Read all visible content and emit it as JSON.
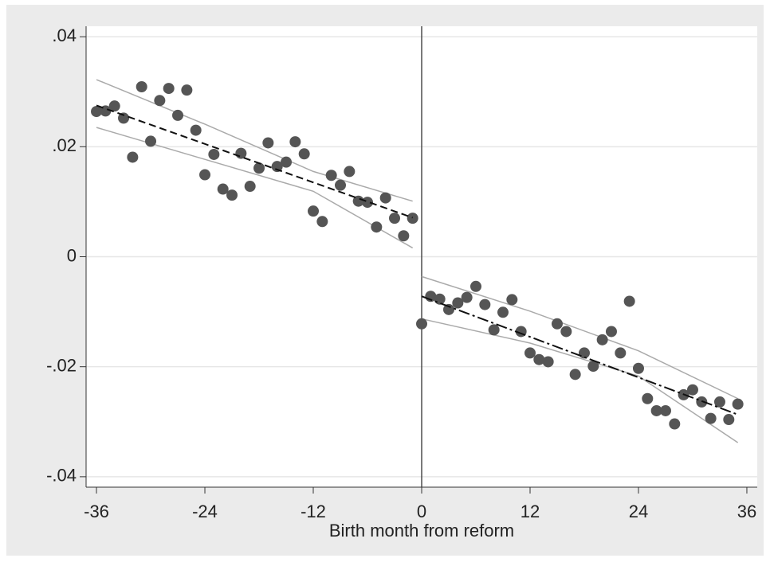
{
  "chart_data": {
    "type": "scatter",
    "xlabel": "Birth month from reform",
    "xlim": [
      -37.15,
      37.15
    ],
    "ylim": [
      -0.0419,
      0.0419
    ],
    "xticks": [
      -36,
      -24,
      -12,
      0,
      12,
      24,
      36
    ],
    "yticks": [
      {
        "value": 0.04,
        "label": ".04"
      },
      {
        "value": 0.02,
        "label": ".02"
      },
      {
        "value": 0,
        "label": "0"
      },
      {
        "value": -0.02,
        "label": "-.02"
      },
      {
        "value": -0.04,
        "label": "-.04"
      }
    ],
    "grid": true,
    "reference_line_x": 0,
    "series": [
      {
        "color": "#555555",
        "x": [
          -36,
          -35,
          -34,
          -33,
          -32,
          -31,
          -30,
          -29,
          -28,
          -27,
          -26,
          -25,
          -24,
          -23,
          -22,
          -21,
          -20,
          -19,
          -18,
          -17,
          -16,
          -15,
          -14,
          -13,
          -12,
          -11,
          -10,
          -9,
          -8,
          -7,
          -6,
          -5,
          -4,
          -3,
          -2,
          -1
        ],
        "values": [
          0.0264,
          0.0265,
          0.0274,
          0.0252,
          0.0181,
          0.0309,
          0.021,
          0.0284,
          0.0306,
          0.0257,
          0.0303,
          0.023,
          0.0149,
          0.0186,
          0.0123,
          0.0112,
          0.0188,
          0.0128,
          0.0161,
          0.0207,
          0.0164,
          0.0172,
          0.0209,
          0.0187,
          0.0083,
          0.0064,
          0.0148,
          0.013,
          0.0155,
          0.0101,
          0.0099,
          0.0054,
          0.0107,
          0.007,
          0.0038,
          0.007
        ]
      },
      {
        "color": "#555555",
        "x": [
          0,
          1,
          2,
          3,
          4,
          5,
          6,
          7,
          8,
          9,
          10,
          11,
          12,
          13,
          14,
          15,
          16,
          17,
          18,
          19,
          20,
          21,
          22,
          23,
          24,
          25,
          26,
          27,
          28,
          29,
          30,
          31,
          32,
          33,
          34,
          35
        ],
        "values": [
          -0.0122,
          -0.0072,
          -0.0077,
          -0.0096,
          -0.0084,
          -0.0074,
          -0.0054,
          -0.0087,
          -0.0133,
          -0.0101,
          -0.0078,
          -0.0136,
          -0.0175,
          -0.0187,
          -0.0191,
          -0.0122,
          -0.0136,
          -0.0214,
          -0.0175,
          -0.0199,
          -0.0151,
          -0.0136,
          -0.0175,
          -0.0081,
          -0.0203,
          -0.0258,
          -0.028,
          -0.028,
          -0.0304,
          -0.0251,
          -0.0242,
          -0.0264,
          -0.0294,
          -0.0264,
          -0.0296,
          -0.0268
        ]
      }
    ],
    "fit_lines": [
      {
        "color": "#111111",
        "dash": "dashed",
        "x": [
          -36,
          -1
        ],
        "values": [
          0.0275,
          0.0071
        ]
      },
      {
        "color": "#111111",
        "dash": "dashdot",
        "x": [
          0,
          35
        ],
        "values": [
          -0.0072,
          -0.0287
        ]
      }
    ],
    "ci_bands": [
      {
        "color": "#aaaaaa",
        "x": [
          -36,
          -24,
          -12,
          -1
        ],
        "values": [
          0.0322,
          0.0241,
          0.0155,
          0.0101
        ]
      },
      {
        "color": "#aaaaaa",
        "x": [
          -36,
          -24,
          -12,
          -1
        ],
        "values": [
          0.0235,
          0.0177,
          0.0119,
          0.0016
        ]
      },
      {
        "color": "#aaaaaa",
        "x": [
          0,
          12,
          24,
          35
        ],
        "values": [
          -0.0036,
          -0.0099,
          -0.0171,
          -0.0258
        ]
      },
      {
        "color": "#aaaaaa",
        "x": [
          0,
          12,
          24,
          35
        ],
        "values": [
          -0.0113,
          -0.0157,
          -0.0217,
          -0.0338
        ]
      }
    ]
  }
}
